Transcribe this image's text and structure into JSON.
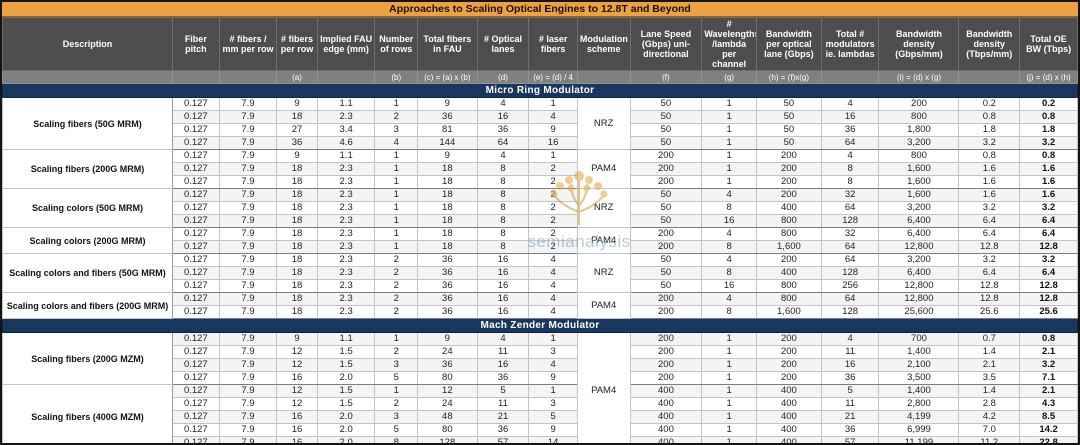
{
  "title": "Approaches to Scaling Optical Engines to 12.8T and Beyond",
  "watermark": {
    "text": "semianalysis"
  },
  "colors": {
    "title_bar": "#EEA13F",
    "header": "#4D4D4D",
    "subheader": "#808080",
    "section_bar": "#17375E",
    "watermark_gold": "#E3A33C",
    "watermark_text": "#7FA0B8"
  },
  "columns": [
    {
      "label": "Description",
      "formula": ""
    },
    {
      "label": "Fiber pitch",
      "formula": ""
    },
    {
      "label": "# fibers / mm per row",
      "formula": ""
    },
    {
      "label": "# fibers per row",
      "formula": "(a)"
    },
    {
      "label": "Implied FAU edge (mm)",
      "formula": ""
    },
    {
      "label": "Number of rows",
      "formula": "(b)"
    },
    {
      "label": "Total fibers in FAU",
      "formula": "(c) = (a) x (b)"
    },
    {
      "label": "# Optical lanes",
      "formula": "(d)"
    },
    {
      "label": "# laser fibers",
      "formula": "(e) = (d) / 4"
    },
    {
      "label": "Modulation scheme",
      "formula": ""
    },
    {
      "label": "Lane Speed (Gbps) uni-directional",
      "formula": "(f)"
    },
    {
      "label": "# Wavelengths /lambda per channel",
      "formula": "(g)"
    },
    {
      "label": "Bandwidth per optical lane (Gbps)",
      "formula": "(h) = (f)x(g)"
    },
    {
      "label": "Total # modulators ie. lambdas",
      "formula": ""
    },
    {
      "label": "Bandwidth density (Gbps/mm)",
      "formula": "(i) = (d) x (g)"
    },
    {
      "label": "Bandwidth density (Tbps/mm)",
      "formula": ""
    },
    {
      "label": "Total OE BW (Tbps)",
      "formula": "(j) = (d) x (h)"
    }
  ],
  "sections": [
    {
      "name": "Micro Ring Modulator",
      "modulation": null,
      "groups": [
        {
          "description": "Scaling fibers (50G MRM)",
          "modulation": "NRZ",
          "rows": [
            [
              "0.127",
              "7.9",
              "9",
              "1.1",
              "1",
              "9",
              "4",
              "1",
              "50",
              "1",
              "50",
              "4",
              "200",
              "0.2",
              "0.2"
            ],
            [
              "0.127",
              "7.9",
              "18",
              "2.3",
              "2",
              "36",
              "16",
              "4",
              "50",
              "1",
              "50",
              "16",
              "800",
              "0.8",
              "0.8"
            ],
            [
              "0.127",
              "7.9",
              "27",
              "3.4",
              "3",
              "81",
              "36",
              "9",
              "50",
              "1",
              "50",
              "36",
              "1,800",
              "1.8",
              "1.8"
            ],
            [
              "0.127",
              "7.9",
              "36",
              "4.6",
              "4",
              "144",
              "64",
              "16",
              "50",
              "1",
              "50",
              "64",
              "3,200",
              "3.2",
              "3.2"
            ]
          ]
        },
        {
          "description": "Scaling fibers (200G MRM)",
          "modulation": "PAM4",
          "rows": [
            [
              "0.127",
              "7.9",
              "9",
              "1.1",
              "1",
              "9",
              "4",
              "1",
              "200",
              "1",
              "200",
              "4",
              "800",
              "0.8",
              "0.8"
            ],
            [
              "0.127",
              "7.9",
              "18",
              "2.3",
              "1",
              "18",
              "8",
              "2",
              "200",
              "1",
              "200",
              "8",
              "1,600",
              "1.6",
              "1.6"
            ],
            [
              "0.127",
              "7.9",
              "18",
              "2.3",
              "1",
              "18",
              "8",
              "2",
              "200",
              "1",
              "200",
              "8",
              "1,600",
              "1.6",
              "1.6"
            ]
          ]
        },
        {
          "description": "Scaling colors (50G MRM)",
          "modulation": "NRZ",
          "rows": [
            [
              "0.127",
              "7.9",
              "18",
              "2.3",
              "1",
              "18",
              "8",
              "2",
              "50",
              "4",
              "200",
              "32",
              "1,600",
              "1.6",
              "1.6"
            ],
            [
              "0.127",
              "7.9",
              "18",
              "2.3",
              "1",
              "18",
              "8",
              "2",
              "50",
              "8",
              "400",
              "64",
              "3,200",
              "3.2",
              "3.2"
            ],
            [
              "0.127",
              "7.9",
              "18",
              "2.3",
              "1",
              "18",
              "8",
              "2",
              "50",
              "16",
              "800",
              "128",
              "6,400",
              "6.4",
              "6.4"
            ]
          ]
        },
        {
          "description": "Scaling colors (200G MRM)",
          "modulation": "PAM4",
          "rows": [
            [
              "0.127",
              "7.9",
              "18",
              "2.3",
              "1",
              "18",
              "8",
              "2",
              "200",
              "4",
              "800",
              "32",
              "6,400",
              "6.4",
              "6.4"
            ],
            [
              "0.127",
              "7.9",
              "18",
              "2.3",
              "1",
              "18",
              "8",
              "2",
              "200",
              "8",
              "1,600",
              "64",
              "12,800",
              "12.8",
              "12.8"
            ]
          ]
        },
        {
          "description": "Scaling colors and fibers (50G MRM)",
          "modulation": "NRZ",
          "rows": [
            [
              "0.127",
              "7.9",
              "18",
              "2.3",
              "2",
              "36",
              "16",
              "4",
              "50",
              "4",
              "200",
              "64",
              "3,200",
              "3.2",
              "3.2"
            ],
            [
              "0.127",
              "7.9",
              "18",
              "2.3",
              "2",
              "36",
              "16",
              "4",
              "50",
              "8",
              "400",
              "128",
              "6,400",
              "6.4",
              "6.4"
            ],
            [
              "0.127",
              "7.9",
              "18",
              "2.3",
              "2",
              "36",
              "16",
              "4",
              "50",
              "16",
              "800",
              "256",
              "12,800",
              "12.8",
              "12.8"
            ]
          ]
        },
        {
          "description": "Scaling colors and fibers (200G MRM)",
          "modulation": "PAM4",
          "rows": [
            [
              "0.127",
              "7.9",
              "18",
              "2.3",
              "2",
              "36",
              "16",
              "4",
              "200",
              "4",
              "800",
              "64",
              "12,800",
              "12.8",
              "12.8"
            ],
            [
              "0.127",
              "7.9",
              "18",
              "2.3",
              "2",
              "36",
              "16",
              "4",
              "200",
              "8",
              "1,600",
              "128",
              "25,600",
              "25.6",
              "25.6"
            ]
          ]
        }
      ]
    },
    {
      "name": "Mach Zender Modulator",
      "modulation": "PAM4",
      "groups": [
        {
          "description": "Scaling fibers (200G MZM)",
          "modulation": null,
          "rows": [
            [
              "0.127",
              "7.9",
              "9",
              "1.1",
              "1",
              "9",
              "4",
              "1",
              "200",
              "1",
              "200",
              "4",
              "700",
              "0.7",
              "0.8"
            ],
            [
              "0.127",
              "7.9",
              "12",
              "1.5",
              "2",
              "24",
              "11",
              "3",
              "200",
              "1",
              "200",
              "11",
              "1,400",
              "1.4",
              "2.1"
            ],
            [
              "0.127",
              "7.9",
              "12",
              "1.5",
              "3",
              "36",
              "16",
              "4",
              "200",
              "1",
              "200",
              "16",
              "2,100",
              "2.1",
              "3.2"
            ],
            [
              "0.127",
              "7.9",
              "16",
              "2.0",
              "5",
              "80",
              "36",
              "9",
              "200",
              "1",
              "200",
              "36",
              "3,500",
              "3.5",
              "7.1"
            ]
          ]
        },
        {
          "description": "Scaling fibers (400G MZM)",
          "modulation": null,
          "rows": [
            [
              "0.127",
              "7.9",
              "12",
              "1.5",
              "1",
              "12",
              "5",
              "1",
              "400",
              "1",
              "400",
              "5",
              "1,400",
              "1.4",
              "2.1"
            ],
            [
              "0.127",
              "7.9",
              "12",
              "1.5",
              "2",
              "24",
              "11",
              "3",
              "400",
              "1",
              "400",
              "11",
              "2,800",
              "2.8",
              "4.3"
            ],
            [
              "0.127",
              "7.9",
              "16",
              "2.0",
              "3",
              "48",
              "21",
              "5",
              "400",
              "1",
              "400",
              "21",
              "4,199",
              "4.2",
              "8.5"
            ],
            [
              "0.127",
              "7.9",
              "16",
              "2.0",
              "5",
              "80",
              "36",
              "9",
              "400",
              "1",
              "400",
              "36",
              "6,999",
              "7.0",
              "14.2"
            ],
            [
              "0.127",
              "7.9",
              "16",
              "2.0",
              "8",
              "128",
              "57",
              "14",
              "400",
              "1",
              "400",
              "57",
              "11,199",
              "11.2",
              "22.8"
            ]
          ]
        }
      ]
    }
  ]
}
